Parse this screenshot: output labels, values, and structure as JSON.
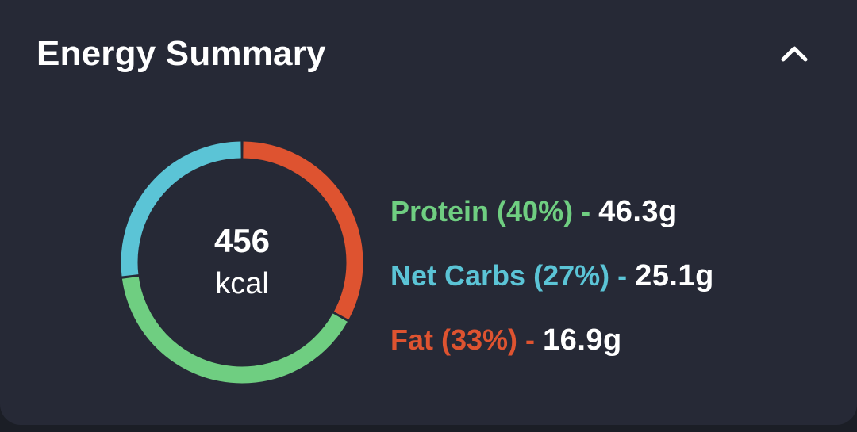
{
  "card": {
    "title": "Energy Summary",
    "collapse_icon": "chevron-up-icon"
  },
  "summary": {
    "total_value": "456",
    "total_unit": "kcal"
  },
  "colors": {
    "protein": "#6fce81",
    "net_carbs": "#5bc4d6",
    "fat": "#de5330",
    "card_bg": "#262936",
    "text": "#ffffff"
  },
  "macros": [
    {
      "key": "protein",
      "name": "Protein",
      "percent_label": "(40%)",
      "percent": 40,
      "separator": "-",
      "amount": "46.3g"
    },
    {
      "key": "net_carbs",
      "name": "Net Carbs",
      "percent_label": "(27%)",
      "percent": 27,
      "separator": "-",
      "amount": "25.1g"
    },
    {
      "key": "fat",
      "name": "Fat",
      "percent_label": "(33%)",
      "percent": 33,
      "separator": "-",
      "amount": "16.9g"
    }
  ],
  "chart_data": {
    "type": "pie",
    "categories": [
      "Fat",
      "Protein",
      "Net Carbs"
    ],
    "values": [
      33,
      40,
      27
    ],
    "center_label": "456 kcal"
  }
}
